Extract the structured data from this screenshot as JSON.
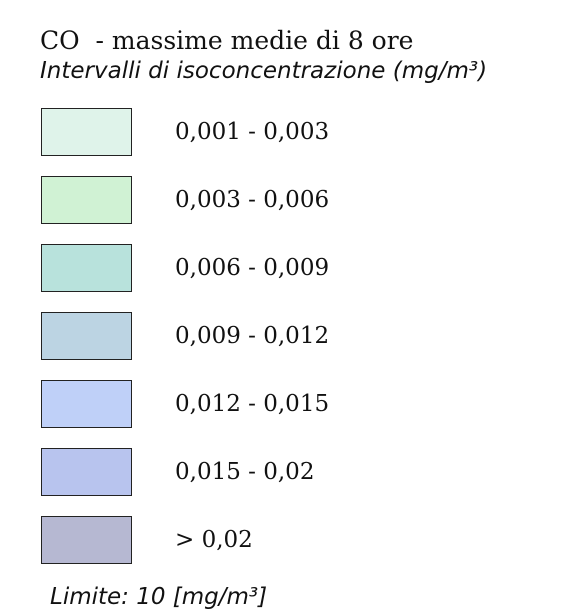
{
  "title": "CO  - massime medie di 8 ore",
  "subtitle": "Intervalli di isoconcentrazione (mg/m³)",
  "legend": {
    "items": [
      {
        "label": "0,001 - 0,003",
        "color": "#dff3ea"
      },
      {
        "label": "0,003 - 0,006",
        "color": "#d0f2d4"
      },
      {
        "label": "0,006 - 0,009",
        "color": "#b8e2dc"
      },
      {
        "label": "0,009 - 0,012",
        "color": "#bcd4e3"
      },
      {
        "label": "0,012 - 0,015",
        "color": "#bfd0f8"
      },
      {
        "label": "0,015 - 0,02",
        "color": "#b8c4ee"
      },
      {
        "label": "> 0,02",
        "color": "#b6b8d2"
      }
    ]
  },
  "footer": "Limite: 10 [mg/m³]"
}
